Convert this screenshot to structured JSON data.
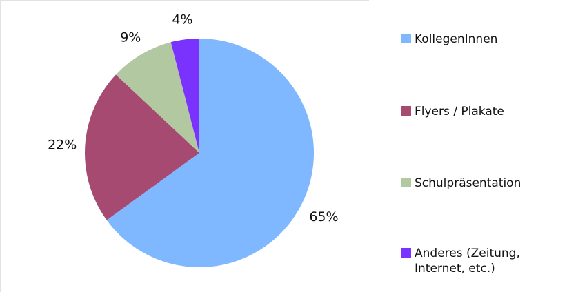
{
  "chart_data": {
    "type": "pie",
    "title": "",
    "labels": [
      "KollegenInnen",
      "Flyers / Plakate",
      "Schulpräsentation",
      "Anderes (Zeitung,\nInternet, etc.)"
    ],
    "values": [
      65,
      22,
      9,
      4
    ],
    "value_labels": [
      "65%",
      "22%",
      "9%",
      "4%"
    ],
    "colors": [
      "#7fb8ff",
      "#a64a72",
      "#b2c8a0",
      "#7a33ff"
    ],
    "start_angle_deg": 0,
    "direction": "clockwise",
    "legend_position": "right"
  }
}
